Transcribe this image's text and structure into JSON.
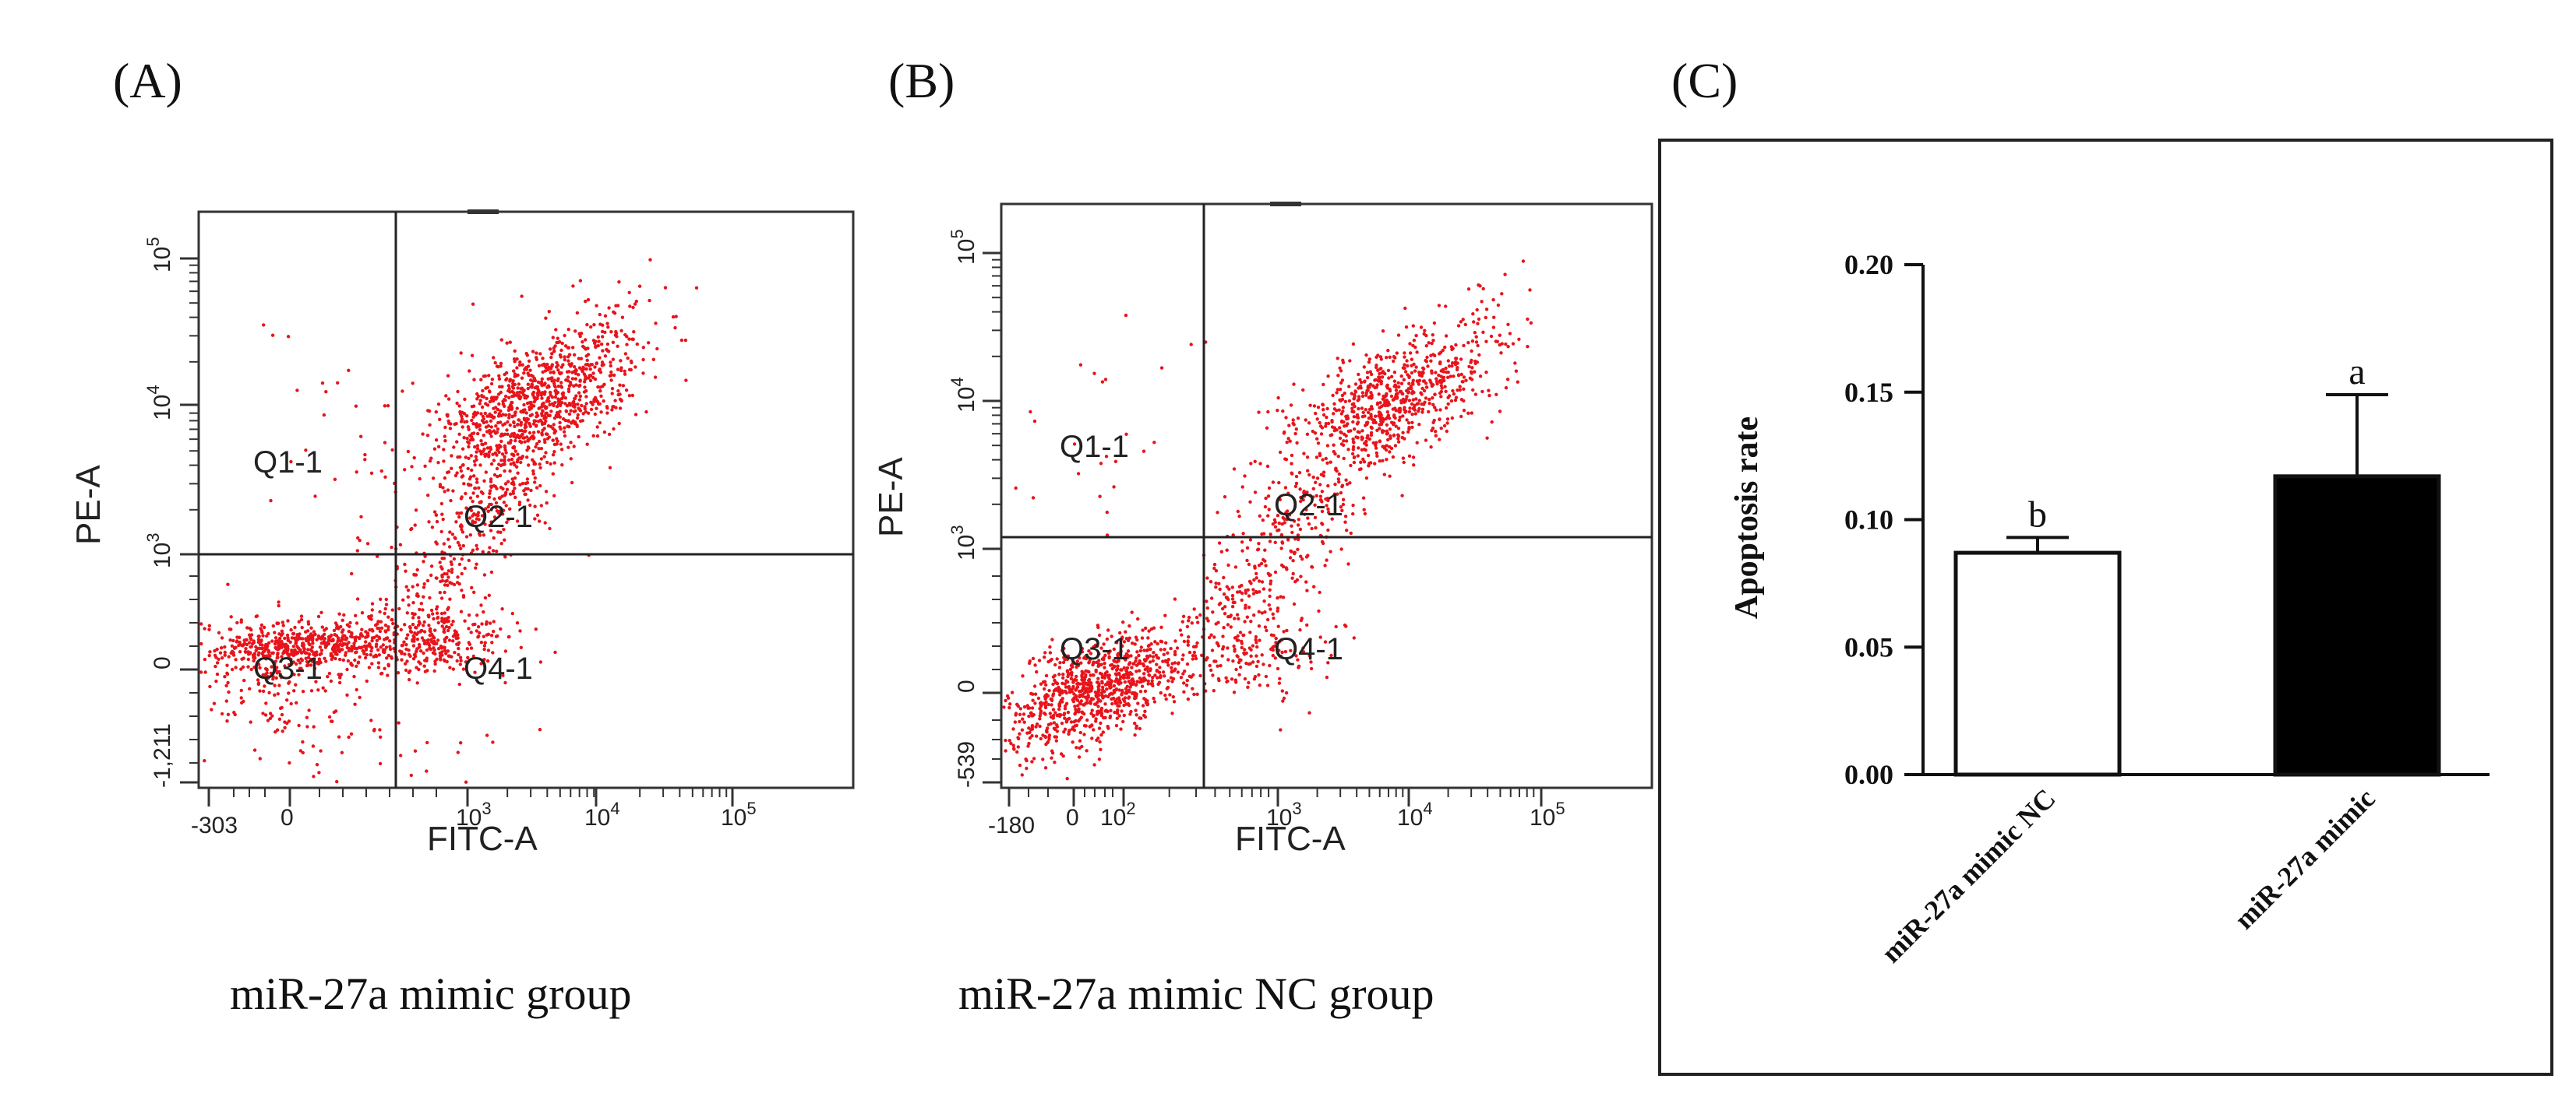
{
  "colors": {
    "dots": "#e8141b",
    "axis": "#222222",
    "frame": "#333333",
    "bar_nc": "#ffffff",
    "bar_mimic": "#000000"
  },
  "panels": {
    "a": {
      "letter": "(A)",
      "caption": "miR-27a mimic group"
    },
    "b": {
      "letter": "(B)",
      "caption": "miR-27a mimic NC group"
    },
    "c": {
      "letter": "(C)"
    }
  },
  "chart_data": [
    {
      "type": "scatter",
      "panel": "A",
      "title": "miR-27a mimic group",
      "xlabel": "FITC-A",
      "ylabel": "PE-A",
      "x_ticks": [
        "-303",
        "0",
        "10",
        "10",
        "10"
      ],
      "x_tick_exponents": [
        "",
        "",
        "3",
        "4",
        "5"
      ],
      "y_ticks": [
        "-1,211",
        "0",
        "10",
        "10",
        "10"
      ],
      "y_tick_exponents": [
        "",
        "",
        "3",
        "4",
        "5"
      ],
      "quadrants": [
        "Q1-1",
        "Q2-1",
        "Q3-1",
        "Q4-1"
      ],
      "approx_quadrant_percent": {
        "Q1-1": 2,
        "Q2-1": 48,
        "Q3-1": 36,
        "Q4-1": 14
      }
    },
    {
      "type": "scatter",
      "panel": "B",
      "title": "miR-27a mimic NC group",
      "xlabel": "FITC-A",
      "ylabel": "PE-A",
      "x_ticks": [
        "-180",
        "0",
        "10",
        "10",
        "10",
        "10"
      ],
      "x_tick_exponents": [
        "",
        "",
        "2",
        "3",
        "4",
        "5"
      ],
      "y_ticks": [
        "-539",
        "0",
        "10",
        "10",
        "10"
      ],
      "y_tick_exponents": [
        "",
        "",
        "3",
        "4",
        "5"
      ],
      "quadrants": [
        "Q1-1",
        "Q2-1",
        "Q3-1",
        "Q4-1"
      ],
      "approx_quadrant_percent": {
        "Q1-1": 2,
        "Q2-1": 40,
        "Q3-1": 46,
        "Q4-1": 12
      }
    },
    {
      "type": "bar",
      "panel": "C",
      "title": "",
      "xlabel": "",
      "ylabel": "Apoptosis rate",
      "ylim": [
        0,
        0.2
      ],
      "y_ticks": [
        "0.00",
        "0.05",
        "0.10",
        "0.15",
        "0.20"
      ],
      "categories": [
        "miR-27a mimic NC",
        "miR-27a mimic"
      ],
      "values": [
        0.087,
        0.117
      ],
      "errors": [
        0.006,
        0.032
      ],
      "significance": [
        "b",
        "a"
      ]
    }
  ]
}
